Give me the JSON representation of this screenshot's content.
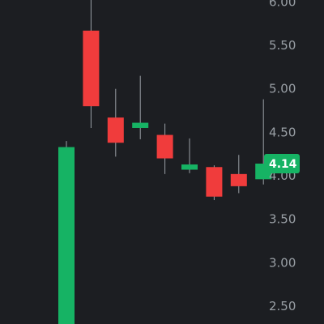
{
  "colors": {
    "background": "#1c1e22",
    "up": "#16b364",
    "down": "#f03c3c",
    "wick": "#9aa0a6",
    "price_tag_bg": "#16b364",
    "tick_text": "#9aa0a6"
  },
  "price_tag": {
    "label": "4.14",
    "value": 4.14
  },
  "chart_data": {
    "type": "candlestick",
    "y_axis": {
      "position": "right",
      "ticks": [
        {
          "label": "6.00",
          "value": 6.0
        },
        {
          "label": "5.50",
          "value": 5.5
        },
        {
          "label": "5.00",
          "value": 5.0
        },
        {
          "label": "4.50",
          "value": 4.5
        },
        {
          "label": "4.00",
          "value": 4.0
        },
        {
          "label": "3.50",
          "value": 3.5
        },
        {
          "label": "3.00",
          "value": 3.0
        },
        {
          "label": "2.50",
          "value": 2.5
        }
      ]
    },
    "candles": [
      {
        "open": 1.9,
        "close": 4.33,
        "high": 4.4,
        "low": 1.9,
        "direction": "up"
      },
      {
        "open": 5.67,
        "close": 4.8,
        "high": 6.1,
        "low": 4.55,
        "direction": "down"
      },
      {
        "open": 4.67,
        "close": 4.38,
        "high": 5.0,
        "low": 4.22,
        "direction": "down"
      },
      {
        "open": 4.55,
        "close": 4.61,
        "high": 5.15,
        "low": 4.42,
        "direction": "up"
      },
      {
        "open": 4.47,
        "close": 4.2,
        "high": 4.6,
        "low": 4.02,
        "direction": "down"
      },
      {
        "open": 4.07,
        "close": 4.13,
        "high": 4.43,
        "low": 4.03,
        "direction": "up"
      },
      {
        "open": 4.1,
        "close": 3.76,
        "high": 4.12,
        "low": 3.72,
        "direction": "down"
      },
      {
        "open": 4.02,
        "close": 3.88,
        "high": 4.24,
        "low": 3.8,
        "direction": "down"
      },
      {
        "open": 3.96,
        "close": 4.14,
        "high": 4.88,
        "low": 3.9,
        "direction": "up"
      }
    ]
  }
}
